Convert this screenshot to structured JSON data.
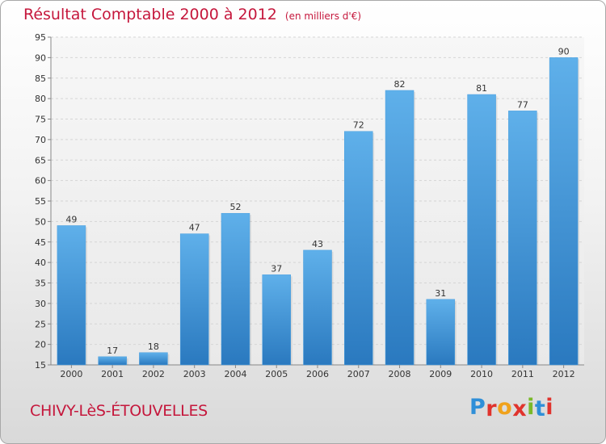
{
  "chart_data": {
    "type": "bar",
    "title": "Résultat Comptable 2000 à 2012",
    "subtitle": "(en milliers d'€)",
    "categories": [
      "2000",
      "2001",
      "2002",
      "2003",
      "2004",
      "2005",
      "2006",
      "2007",
      "2008",
      "2009",
      "2010",
      "2011",
      "2012"
    ],
    "values": [
      49,
      17,
      18,
      47,
      52,
      37,
      43,
      72,
      82,
      31,
      81,
      77,
      90
    ],
    "xlabel": "",
    "ylabel": "",
    "ylim": [
      15,
      95
    ],
    "yticks": [
      15,
      20,
      25,
      30,
      35,
      40,
      45,
      50,
      55,
      60,
      65,
      70,
      75,
      80,
      85,
      90,
      95
    ],
    "grid": true,
    "legend": "none"
  },
  "footer": {
    "town": "CHIVY-LèS-ÉTOUVELLES",
    "logo_letters": [
      "P",
      "r",
      "o",
      "x",
      "i",
      "t",
      "i"
    ],
    "logo_colors": [
      "#2f8fd8",
      "#e0332d",
      "#f0a21c",
      "#e0332d",
      "#7ab929",
      "#2f8fd8",
      "#e0332d"
    ]
  },
  "colors": {
    "bar_top": "#5fb0ea",
    "bar_bottom": "#2a79bf",
    "title": "#c5173c",
    "grid": "#d5d5d5"
  }
}
